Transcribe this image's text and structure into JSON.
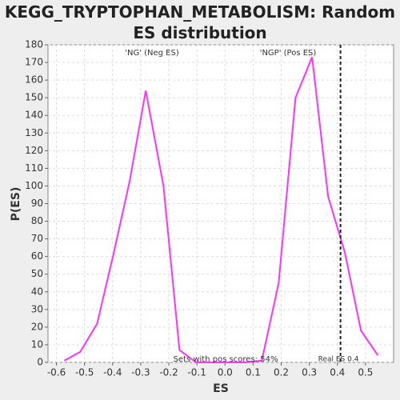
{
  "chart_data": {
    "type": "line",
    "title": "KEGG_TRYPTOPHAN_METABOLISM: Random ES distribution",
    "x_label": "ES",
    "y_label": "P(ES)",
    "x": [
      -0.572,
      -0.515,
      -0.455,
      -0.396,
      -0.339,
      -0.282,
      -0.219,
      -0.162,
      -0.103,
      -0.046,
      0.011,
      0.071,
      0.131,
      0.191,
      0.251,
      0.31,
      0.367,
      0.427,
      0.484,
      0.544
    ],
    "series": [
      {
        "color": "#ff33ff",
        "values": [
          1,
          6,
          22,
          62,
          103,
          154,
          100,
          7,
          0,
          0,
          0,
          0,
          1,
          45,
          150,
          173,
          94,
          62,
          18,
          4
        ]
      }
    ],
    "xlim": [
      -0.63,
      0.6
    ],
    "ylim": [
      0,
      180
    ],
    "xticks": [
      -0.6,
      -0.5,
      -0.4,
      -0.3,
      -0.2,
      -0.1,
      {
        "value": 0,
        "label": "0.0"
      },
      0.1,
      0.2,
      0.3,
      0.4,
      0.5
    ],
    "yticks": [
      0,
      10,
      20,
      30,
      40,
      50,
      60,
      70,
      80,
      90,
      100,
      110,
      120,
      130,
      140,
      150,
      160,
      170,
      180
    ],
    "grid": true,
    "real_es": {
      "value": 0.411,
      "label": "Real ES 0.4"
    },
    "annotations": [
      {
        "text": "'NG' (Neg ES)",
        "color": "#2222ee"
      },
      {
        "text": "'NGP' (Pos ES)",
        "color": "#ee2222"
      },
      {
        "text": "Sets with pos scores: 54%",
        "color": "#333333"
      }
    ]
  }
}
